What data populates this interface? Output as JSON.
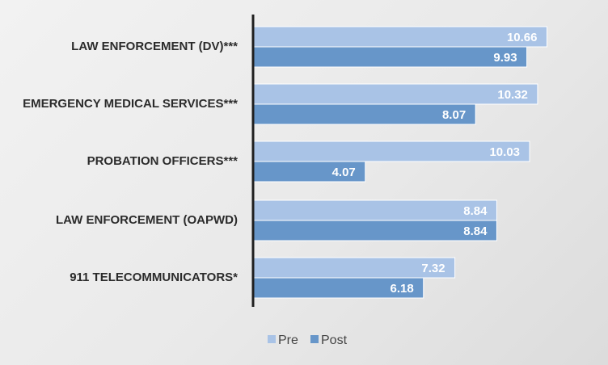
{
  "chart_data": {
    "type": "bar",
    "orientation": "horizontal",
    "categories": [
      "LAW ENFORCEMENT (DV)***",
      "EMERGENCY MEDICAL SERVICES***",
      "PROBATION OFFICERS***",
      "LAW ENFORCEMENT (OAPWD)",
      "911 TELECOMMUNICATORS*"
    ],
    "series": [
      {
        "name": "Pre",
        "values": [
          10.66,
          10.32,
          10.03,
          8.84,
          7.32
        ],
        "labels": [
          "10.66",
          "10.32",
          "10.03",
          "8.84",
          "7.32"
        ],
        "color": "#a9c3e6"
      },
      {
        "name": "Post",
        "values": [
          9.93,
          8.07,
          4.07,
          8.84,
          6.18
        ],
        "labels": [
          "9.93",
          "8.07",
          "4.07",
          "8.84",
          "6.18"
        ],
        "color": "#6796c9"
      }
    ],
    "xlim": [
      0,
      12
    ],
    "grid": false,
    "legend_position": "bottom",
    "title": "",
    "xlabel": "",
    "ylabel": ""
  },
  "colors": {
    "background": "#ececec",
    "axis": "#1f1f1f",
    "pre": "#a9c3e6",
    "post": "#6796c9"
  }
}
